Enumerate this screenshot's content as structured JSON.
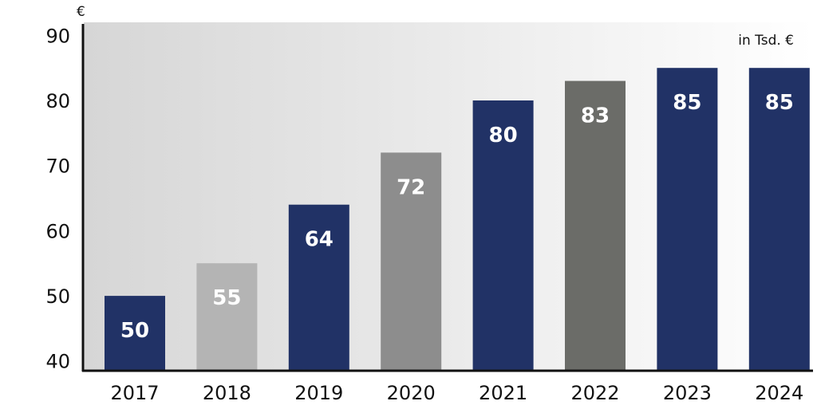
{
  "chart_data": {
    "type": "bar",
    "currency_symbol": "€",
    "unit_note": "in Tsd. €",
    "categories": [
      "2017",
      "2018",
      "2019",
      "2020",
      "2021",
      "2022",
      "2023",
      "2024"
    ],
    "values": [
      50,
      55,
      64,
      72,
      80,
      83,
      85,
      85
    ],
    "value_labels": [
      "50",
      "55",
      "64",
      "72",
      "80",
      "83",
      "85",
      "85"
    ],
    "bar_colors": [
      "#213266",
      "#b4b4b4",
      "#213266",
      "#8d8d8d",
      "#213266",
      "#6b6c68",
      "#213266",
      "#213266"
    ],
    "yticks": [
      40,
      50,
      60,
      70,
      80,
      90
    ],
    "ylim": [
      38.5,
      92
    ],
    "grid": false,
    "background_gradient": [
      "#d6d6d6",
      "#ffffff"
    ]
  }
}
